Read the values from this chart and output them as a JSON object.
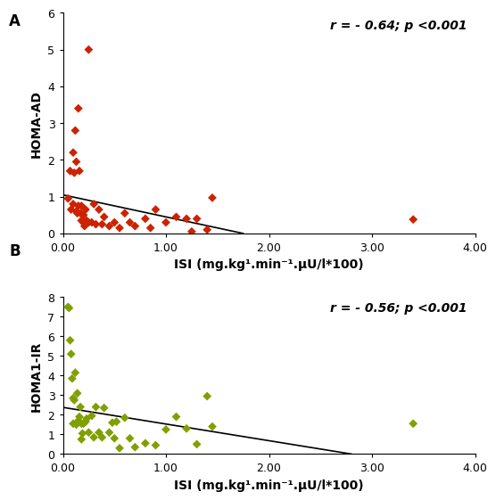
{
  "panel_A": {
    "label": "A",
    "scatter_x": [
      0.05,
      0.07,
      0.08,
      0.1,
      0.1,
      0.11,
      0.12,
      0.13,
      0.13,
      0.14,
      0.15,
      0.15,
      0.16,
      0.17,
      0.18,
      0.18,
      0.19,
      0.2,
      0.2,
      0.21,
      0.22,
      0.23,
      0.25,
      0.25,
      0.28,
      0.3,
      0.32,
      0.35,
      0.38,
      0.4,
      0.45,
      0.5,
      0.55,
      0.6,
      0.65,
      0.7,
      0.8,
      0.85,
      0.9,
      1.0,
      1.1,
      1.2,
      1.25,
      1.3,
      1.4,
      1.45,
      3.4
    ],
    "scatter_y": [
      0.95,
      1.7,
      0.65,
      2.2,
      0.8,
      1.65,
      2.8,
      1.95,
      0.6,
      0.55,
      3.4,
      0.75,
      1.7,
      0.55,
      0.35,
      0.75,
      0.35,
      0.5,
      0.3,
      0.2,
      0.65,
      0.35,
      5.0,
      0.3,
      0.3,
      0.8,
      0.25,
      0.65,
      0.25,
      0.45,
      0.2,
      0.3,
      0.15,
      0.55,
      0.3,
      0.2,
      0.4,
      0.15,
      0.65,
      0.3,
      0.45,
      0.4,
      0.05,
      0.4,
      0.1,
      0.97,
      0.38
    ],
    "color": "#CC2200",
    "ylabel": "HOMA-AD",
    "xlabel": "ISI (mg.kg¹.min⁻¹.μU/l*100)",
    "ylim": [
      0,
      6
    ],
    "xlim": [
      0,
      4.0
    ],
    "yticks": [
      0,
      1,
      2,
      3,
      4,
      5,
      6
    ],
    "xticks": [
      0.0,
      1.0,
      2.0,
      3.0,
      4.0
    ],
    "xticklabels": [
      "0.00",
      "1.00",
      "2.00",
      "3.00",
      "4.00"
    ],
    "annotation": "r = - 0.64; p <0.001",
    "trendline_x": [
      0.0,
      1.75
    ],
    "trendline_y": [
      1.05,
      0.0
    ]
  },
  "panel_B": {
    "label": "B",
    "scatter_x": [
      0.05,
      0.06,
      0.07,
      0.08,
      0.09,
      0.1,
      0.1,
      0.11,
      0.12,
      0.13,
      0.14,
      0.15,
      0.16,
      0.17,
      0.18,
      0.18,
      0.19,
      0.2,
      0.22,
      0.23,
      0.25,
      0.28,
      0.3,
      0.32,
      0.35,
      0.38,
      0.4,
      0.45,
      0.48,
      0.5,
      0.52,
      0.55,
      0.6,
      0.65,
      0.7,
      0.8,
      0.9,
      1.0,
      1.1,
      1.2,
      1.3,
      1.4,
      1.45,
      3.4
    ],
    "scatter_y": [
      7.5,
      7.45,
      5.8,
      5.1,
      3.85,
      2.85,
      1.55,
      2.75,
      4.15,
      1.5,
      3.1,
      1.7,
      1.9,
      2.4,
      0.75,
      1.55,
      1.05,
      1.55,
      1.65,
      1.8,
      1.1,
      1.95,
      0.85,
      2.4,
      1.1,
      0.85,
      2.35,
      1.1,
      1.6,
      0.8,
      1.65,
      0.3,
      1.85,
      0.8,
      0.35,
      0.55,
      0.45,
      1.25,
      1.9,
      1.3,
      0.5,
      2.95,
      1.4,
      1.55
    ],
    "color": "#80A000",
    "ylabel": "HOMA1-IR",
    "xlabel": "ISI (mg.kg¹.min⁻¹.μU/l*100)",
    "ylim": [
      0,
      8
    ],
    "xlim": [
      0,
      4.0
    ],
    "yticks": [
      0,
      1,
      2,
      3,
      4,
      5,
      6,
      7,
      8
    ],
    "xticks": [
      0.0,
      1.0,
      2.0,
      3.0,
      4.0
    ],
    "xticklabels": [
      "0.00",
      "1.00",
      "2.00",
      "3.00",
      "4.00"
    ],
    "annotation": "r = - 0.56; p <0.001",
    "trendline_x": [
      0.0,
      2.8
    ],
    "trendline_y": [
      2.38,
      0.0
    ]
  },
  "background_color": "#ffffff",
  "marker": "D",
  "markersize": 5,
  "tick_fontsize": 9,
  "label_fontsize": 10,
  "annotation_fontsize": 10,
  "panel_label_fontsize": 12
}
